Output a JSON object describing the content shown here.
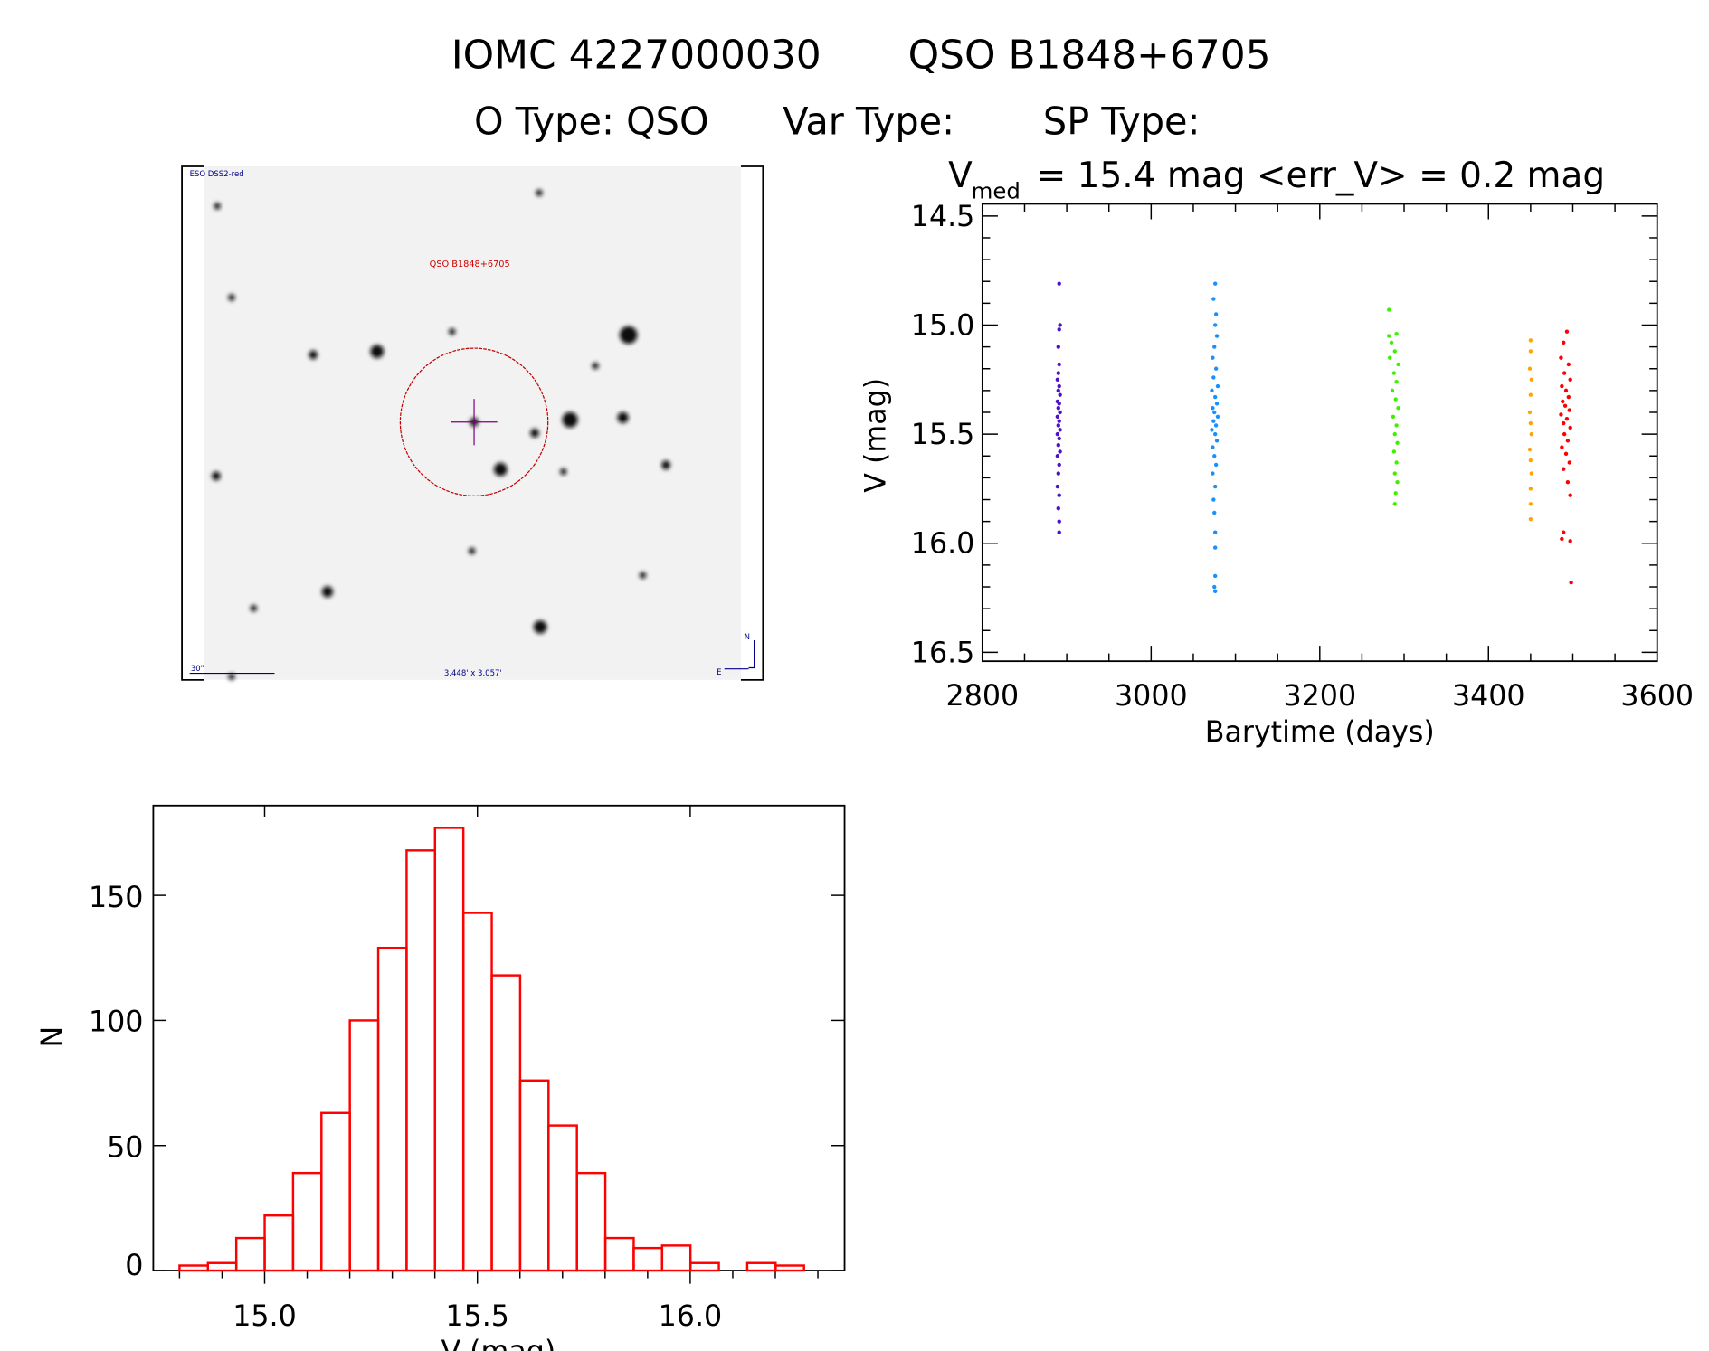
{
  "header": {
    "title_id": "IOMC 4227000030",
    "title_name": "QSO B1848+6705",
    "otype": "O Type: QSO",
    "vartype": "Var Type:",
    "sptype": "SP Type:",
    "vmed_symbol": "V",
    "vmed_sub": "med",
    "vmed_text": "= 15.4 mag <err_V> = 0.2 mag"
  },
  "finder_image": {
    "survey_label": "ESO DSS2-red",
    "target_label": "QSO B1848+6705",
    "scale_label": "30\"",
    "size_label": "3.448' x 3.057'",
    "north_label": "N",
    "east_label": "E",
    "circle_color": "#c00000",
    "crosshair_color": "#800080"
  },
  "chart_data": [
    {
      "type": "scatter",
      "xlabel": "Barytime (days)",
      "ylabel": "V (mag)",
      "xlim": [
        2800,
        3600
      ],
      "ylim": [
        16.5,
        14.5
      ],
      "y_inverted": true,
      "xticks": [
        "2800",
        "3000",
        "3200",
        "3400",
        "3600"
      ],
      "yticks": [
        "14.5",
        "15.0",
        "15.5",
        "16.0",
        "16.5"
      ],
      "grid": false,
      "series": [
        {
          "color": "#5010c8",
          "points": [
            [
              2891,
              14.81
            ],
            [
              2892,
              15.0
            ],
            [
              2891,
              15.02
            ],
            [
              2890,
              15.1
            ],
            [
              2891,
              15.18
            ],
            [
              2890,
              15.22
            ],
            [
              2889,
              15.25
            ],
            [
              2891,
              15.28
            ],
            [
              2890,
              15.3
            ],
            [
              2892,
              15.32
            ],
            [
              2889,
              15.35
            ],
            [
              2891,
              15.36
            ],
            [
              2890,
              15.38
            ],
            [
              2892,
              15.4
            ],
            [
              2889,
              15.42
            ],
            [
              2891,
              15.44
            ],
            [
              2890,
              15.46
            ],
            [
              2892,
              15.48
            ],
            [
              2889,
              15.5
            ],
            [
              2891,
              15.52
            ],
            [
              2890,
              15.55
            ],
            [
              2892,
              15.58
            ],
            [
              2889,
              15.6
            ],
            [
              2891,
              15.64
            ],
            [
              2890,
              15.68
            ],
            [
              2889,
              15.74
            ],
            [
              2891,
              15.78
            ],
            [
              2890,
              15.84
            ],
            [
              2891,
              15.9
            ],
            [
              2891,
              15.95
            ]
          ]
        },
        {
          "color": "#1890ff",
          "points": [
            [
              3076,
              14.81
            ],
            [
              3074,
              14.88
            ],
            [
              3077,
              14.95
            ],
            [
              3076,
              15.0
            ],
            [
              3078,
              15.05
            ],
            [
              3075,
              15.1
            ],
            [
              3073,
              15.15
            ],
            [
              3077,
              15.2
            ],
            [
              3074,
              15.24
            ],
            [
              3079,
              15.28
            ],
            [
              3072,
              15.3
            ],
            [
              3076,
              15.33
            ],
            [
              3078,
              15.36
            ],
            [
              3073,
              15.38
            ],
            [
              3075,
              15.4
            ],
            [
              3079,
              15.42
            ],
            [
              3074,
              15.44
            ],
            [
              3077,
              15.46
            ],
            [
              3072,
              15.48
            ],
            [
              3076,
              15.5
            ],
            [
              3078,
              15.53
            ],
            [
              3073,
              15.56
            ],
            [
              3075,
              15.6
            ],
            [
              3077,
              15.64
            ],
            [
              3073,
              15.68
            ],
            [
              3076,
              15.74
            ],
            [
              3074,
              15.8
            ],
            [
              3075,
              15.86
            ],
            [
              3076,
              15.95
            ],
            [
              3076,
              16.02
            ],
            [
              3076,
              16.15
            ],
            [
              3075,
              16.2
            ],
            [
              3076,
              16.22
            ]
          ]
        },
        {
          "color": "#40f000",
          "points": [
            [
              3282,
              14.93
            ],
            [
              3282,
              15.05
            ],
            [
              3291,
              15.04
            ],
            [
              3285,
              15.08
            ],
            [
              3289,
              15.12
            ],
            [
              3283,
              15.15
            ],
            [
              3293,
              15.18
            ],
            [
              3288,
              15.22
            ],
            [
              3291,
              15.26
            ],
            [
              3286,
              15.3
            ],
            [
              3290,
              15.34
            ],
            [
              3293,
              15.38
            ],
            [
              3287,
              15.42
            ],
            [
              3291,
              15.46
            ],
            [
              3289,
              15.5
            ],
            [
              3292,
              15.54
            ],
            [
              3288,
              15.58
            ],
            [
              3291,
              15.63
            ],
            [
              3289,
              15.68
            ],
            [
              3292,
              15.72
            ],
            [
              3290,
              15.77
            ],
            [
              3289,
              15.82
            ]
          ]
        },
        {
          "color": "#ffa500",
          "points": [
            [
              3450,
              15.07
            ],
            [
              3450,
              15.12
            ],
            [
              3449,
              15.2
            ],
            [
              3451,
              15.25
            ],
            [
              3450,
              15.32
            ],
            [
              3449,
              15.4
            ],
            [
              3450,
              15.45
            ],
            [
              3451,
              15.5
            ],
            [
              3449,
              15.57
            ],
            [
              3450,
              15.62
            ],
            [
              3451,
              15.68
            ],
            [
              3450,
              15.75
            ],
            [
              3450,
              15.82
            ],
            [
              3450,
              15.89
            ]
          ]
        },
        {
          "color": "#ff0000",
          "points": [
            [
              3493,
              15.03
            ],
            [
              3489,
              15.08
            ],
            [
              3486,
              15.15
            ],
            [
              3495,
              15.18
            ],
            [
              3490,
              15.22
            ],
            [
              3497,
              15.25
            ],
            [
              3487,
              15.28
            ],
            [
              3492,
              15.3
            ],
            [
              3495,
              15.33
            ],
            [
              3488,
              15.35
            ],
            [
              3491,
              15.37
            ],
            [
              3496,
              15.39
            ],
            [
              3486,
              15.41
            ],
            [
              3493,
              15.43
            ],
            [
              3489,
              15.45
            ],
            [
              3497,
              15.47
            ],
            [
              3490,
              15.5
            ],
            [
              3494,
              15.53
            ],
            [
              3487,
              15.56
            ],
            [
              3492,
              15.59
            ],
            [
              3496,
              15.63
            ],
            [
              3489,
              15.66
            ],
            [
              3494,
              15.72
            ],
            [
              3497,
              15.78
            ],
            [
              3489,
              15.95
            ],
            [
              3487,
              15.98
            ],
            [
              3497,
              15.99
            ],
            [
              3498,
              16.18
            ]
          ]
        }
      ]
    },
    {
      "type": "bar",
      "style": "histogram-outline",
      "color": "#ff0000",
      "xlabel": "V (mag)",
      "ylabel": "N",
      "xlim": [
        14.74,
        16.36
      ],
      "ylim": [
        0,
        185
      ],
      "xticks": [
        "15.0",
        "15.5",
        "16.0"
      ],
      "yticks": [
        "0",
        "50",
        "100",
        "150"
      ],
      "bin_start": 14.8,
      "bin_width": 0.0667,
      "values": [
        2,
        3,
        13,
        22,
        39,
        63,
        100,
        129,
        168,
        177,
        143,
        118,
        76,
        58,
        39,
        13,
        9,
        10,
        3,
        0,
        3,
        2
      ]
    }
  ]
}
